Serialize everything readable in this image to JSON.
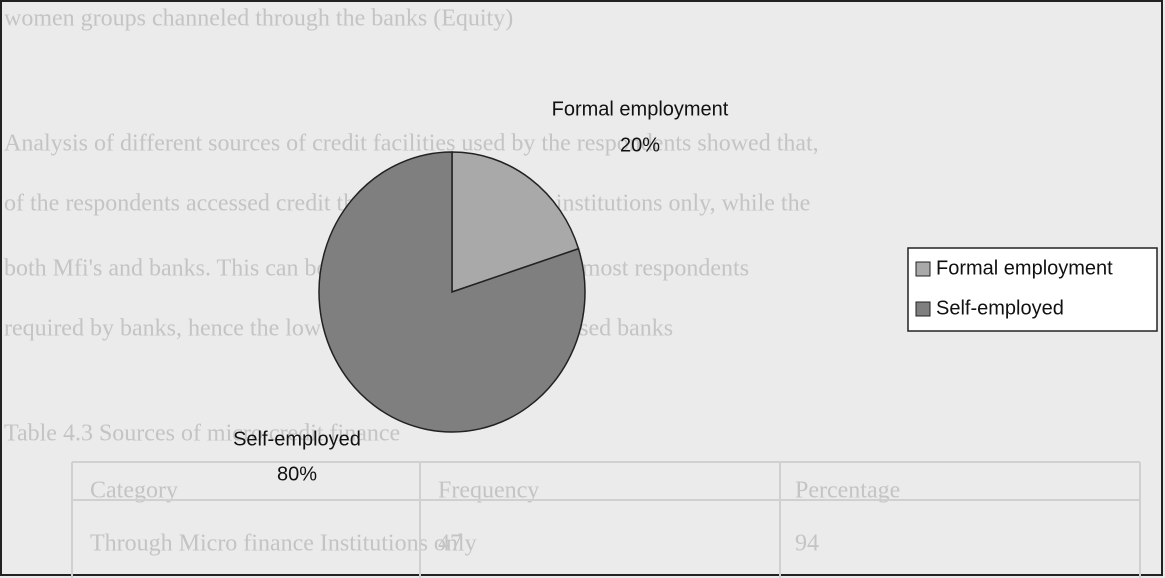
{
  "background_text": [
    "women groups channeled through the banks (Equity)",
    "Analysis of different sources of credit facilities used by the respondents showed that,",
    "of the respondents accessed credit through micro finance institutions only, while the",
    "both Mfi's and banks. This can be explained by the fact that most respondents",
    "required by banks, hence the low percentage of those who used banks",
    "Table 4.3 Sources of micro credit finance"
  ],
  "background_table": [
    [
      "Category",
      "Frequency",
      "Percentage"
    ],
    [
      "Through Micro finance Institutions only",
      "47",
      "94"
    ]
  ],
  "chart_data": {
    "type": "pie",
    "categories": [
      "Formal employment",
      "Self-employed"
    ],
    "values": [
      20,
      80
    ],
    "value_labels": [
      "20%",
      "80%"
    ],
    "colors": [
      "#a9a9a9",
      "#7f7f7f"
    ],
    "legend": "right"
  }
}
